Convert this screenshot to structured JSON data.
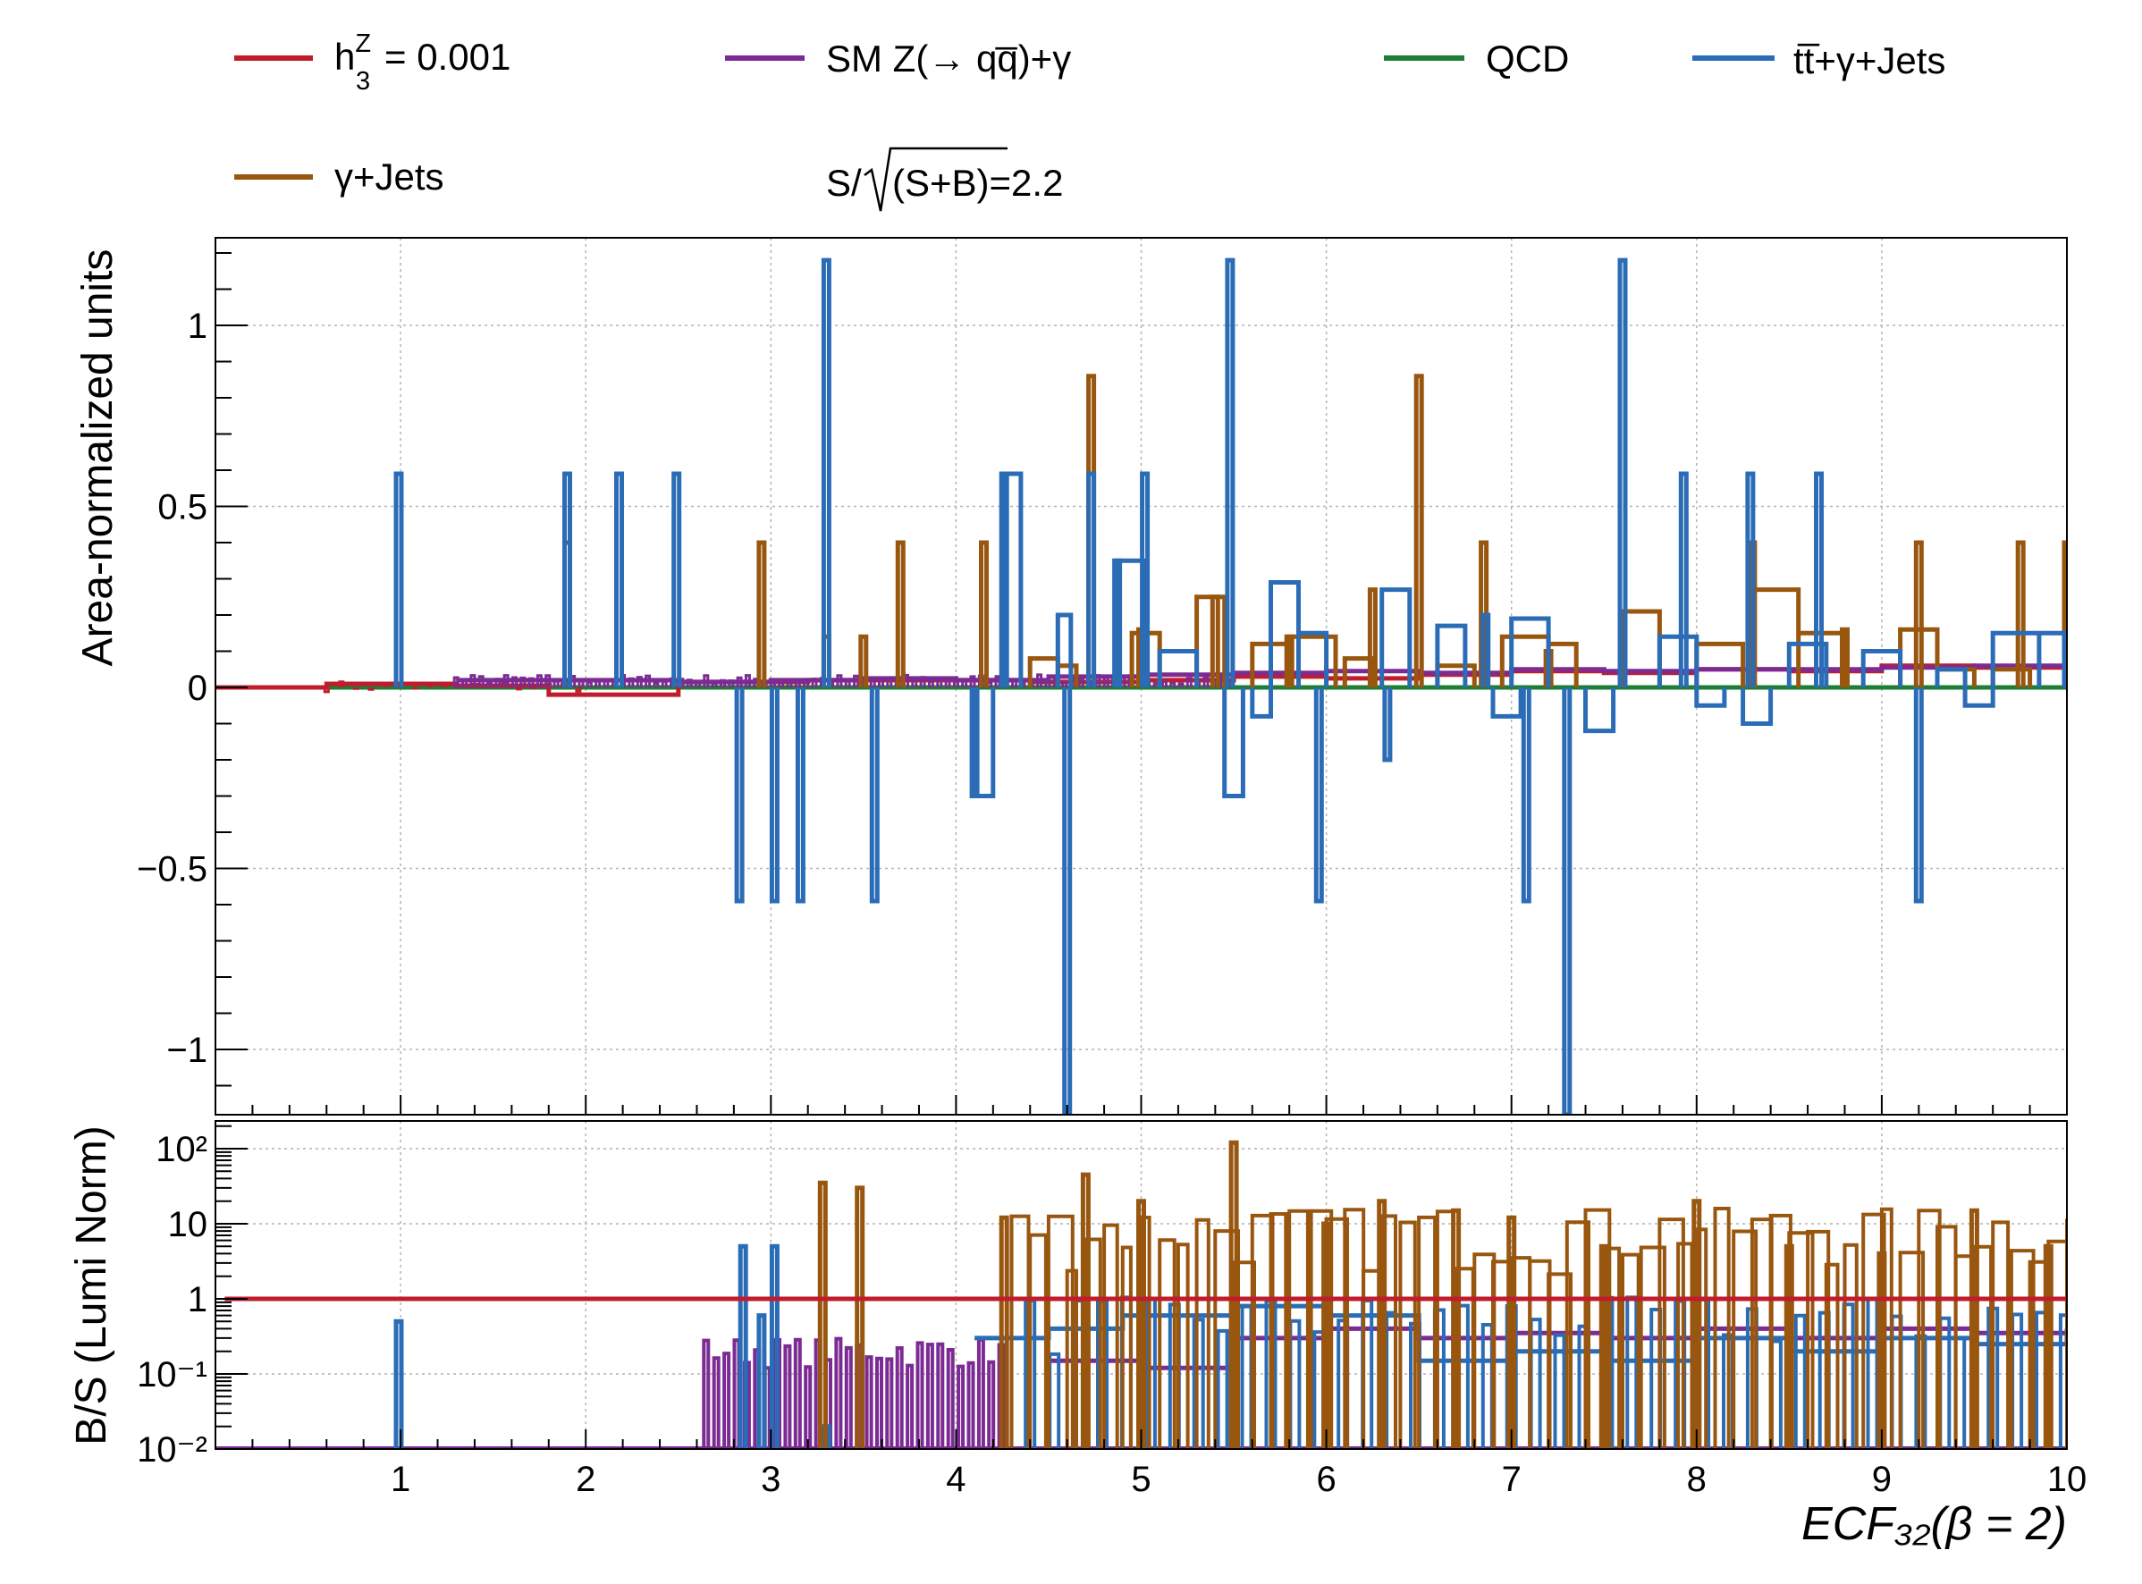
{
  "legend": {
    "items": [
      {
        "label": "h",
        "sup": "Z",
        "sub": "3",
        "suffix": "= 0.001",
        "color": "#c01c2c"
      },
      {
        "label": "SM Z(→ qq̅)+γ",
        "color": "#7b2b93"
      },
      {
        "label": "QCD",
        "color": "#1e7e34"
      },
      {
        "label": "tt̅+γ+Jets",
        "color": "#2a6cb6"
      },
      {
        "label": "γ+Jets",
        "color": "#98560f"
      }
    ],
    "significance": {
      "prefix": "S/",
      "radicand": "(S+B)=2.2"
    }
  },
  "chart_data": [
    {
      "type": "line",
      "ylabel": "Area-normalized units",
      "xlim": [
        0,
        10
      ],
      "ylim": [
        -1.18,
        1.24
      ],
      "grid": true,
      "xticks": [
        1,
        2,
        3,
        4,
        5,
        6,
        7,
        8,
        9,
        10
      ],
      "yticks": [
        -1,
        -0.5,
        0,
        0.5,
        1
      ],
      "ytick_labels": [
        "−1",
        "−0.5",
        "0",
        "0.5",
        "1"
      ],
      "spikes_x_approx": [
        0.99,
        1.9,
        2.18,
        2.49,
        2.83,
        3.02,
        3.16,
        3.3,
        3.56,
        4.1,
        4.26,
        4.36,
        4.47,
        4.6,
        4.73,
        4.87,
        5.02,
        5.48,
        5.96,
        6.33,
        6.86,
        7.08,
        7.6,
        7.93,
        8.29,
        8.66,
        9.2
      ],
      "series": [
        {
          "name": "h_3^Z = 0.001",
          "values_approx": [
            [
              0,
              0
            ],
            [
              0.6,
              0.01
            ],
            [
              1.3,
              0.005
            ],
            [
              1.8,
              -0.02
            ],
            [
              2.5,
              0.015
            ],
            [
              3.2,
              0.02
            ],
            [
              3.8,
              0.02
            ],
            [
              4.4,
              0.015
            ],
            [
              5.0,
              0.02
            ],
            [
              5.5,
              0.03
            ],
            [
              6.0,
              0.025
            ],
            [
              6.5,
              0.035
            ],
            [
              7.0,
              0.045
            ],
            [
              7.5,
              0.04
            ],
            [
              8.0,
              0.05
            ],
            [
              8.5,
              0.045
            ],
            [
              9.0,
              0.06
            ],
            [
              9.5,
              0.055
            ],
            [
              10.0,
              0.055
            ]
          ]
        },
        {
          "name": "SM Z(→ qq̅)+γ",
          "values_approx": [
            [
              1.3,
              0.02
            ],
            [
              2.0,
              0.02
            ],
            [
              2.5,
              0.015
            ],
            [
              3.0,
              0.02
            ],
            [
              3.5,
              0.025
            ],
            [
              4.0,
              0.02
            ],
            [
              4.5,
              0.03
            ],
            [
              5.0,
              0.035
            ],
            [
              5.5,
              0.04
            ],
            [
              6.0,
              0.045
            ],
            [
              6.5,
              0.04
            ],
            [
              7.0,
              0.05
            ],
            [
              7.5,
              0.045
            ],
            [
              8.0,
              0.05
            ],
            [
              8.5,
              0.05
            ],
            [
              9.0,
              0.055
            ],
            [
              9.5,
              0.06
            ],
            [
              10.0,
              0.05
            ]
          ]
        },
        {
          "name": "QCD",
          "values_approx": [
            [
              0,
              0
            ],
            [
              10,
              0
            ]
          ]
        },
        {
          "name": "tt̅+γ+Jets",
          "values_approx": [
            [
              0.99,
              0.59
            ],
            [
              1.9,
              0.59
            ],
            [
              2.18,
              0.59
            ],
            [
              2.49,
              0.59
            ],
            [
              2.83,
              -0.59
            ],
            [
              3.02,
              -0.59
            ],
            [
              3.16,
              -0.59
            ],
            [
              3.3,
              1.18
            ],
            [
              3.56,
              -0.59
            ],
            [
              4.1,
              -0.3
            ],
            [
              4.26,
              0.59
            ],
            [
              4.6,
              -1.18
            ],
            [
              4.73,
              0.59
            ],
            [
              4.87,
              0.35
            ],
            [
              5.02,
              0.59
            ],
            [
              5.48,
              1.18
            ],
            [
              5.96,
              -0.59
            ],
            [
              6.33,
              -0.2
            ],
            [
              6.86,
              0.2
            ],
            [
              7.08,
              -0.59
            ],
            [
              7.3,
              -1.18
            ],
            [
              7.6,
              1.18
            ],
            [
              7.93,
              0.59
            ],
            [
              8.29,
              0.59
            ],
            [
              8.66,
              0.59
            ],
            [
              9.2,
              -0.59
            ],
            [
              10.0,
              0.15
            ]
          ]
        },
        {
          "name": "γ+Jets",
          "values_approx": [
            [
              1.9,
              0.4
            ],
            [
              2.95,
              0.4
            ],
            [
              3.3,
              0.14
            ],
            [
              3.5,
              0.14
            ],
            [
              3.7,
              0.4
            ],
            [
              4.15,
              0.4
            ],
            [
              4.73,
              0.86
            ],
            [
              5.0,
              0.16
            ],
            [
              5.4,
              0.25
            ],
            [
              5.8,
              0.14
            ],
            [
              6.25,
              0.27
            ],
            [
              6.5,
              0.86
            ],
            [
              6.85,
              0.4
            ],
            [
              7.2,
              0.1
            ],
            [
              7.6,
              0.2
            ],
            [
              8.3,
              0.4
            ],
            [
              8.8,
              0.16
            ],
            [
              9.2,
              0.4
            ],
            [
              9.75,
              0.4
            ],
            [
              10.0,
              0.4
            ]
          ]
        }
      ]
    },
    {
      "type": "line",
      "ylabel": "B/S (Lumi Norm)",
      "xlabel": "ECF₃₂(β = 2)",
      "xlim": [
        0,
        10
      ],
      "ylim": [
        0.01,
        250
      ],
      "yscale": "log",
      "grid": true,
      "xticks": [
        1,
        2,
        3,
        4,
        5,
        6,
        7,
        8,
        9,
        10
      ],
      "ytick_labels": [
        "10⁻²",
        "10⁻¹",
        "1",
        "10",
        "10²"
      ],
      "ytick_values": [
        0.01,
        0.1,
        1,
        10,
        100
      ],
      "series": [
        {
          "name": "h_3^Z = 0.001",
          "values_approx": [
            [
              0,
              1
            ],
            [
              10,
              1
            ]
          ]
        },
        {
          "name": "SM Z(→ qq̅)+γ",
          "values_approx": [
            [
              2.65,
              0.2
            ],
            [
              3.6,
              0.2
            ],
            [
              4.0,
              0.22
            ],
            [
              4.5,
              0.15
            ],
            [
              5.0,
              0.12
            ],
            [
              5.5,
              0.3
            ],
            [
              6.0,
              0.4
            ],
            [
              6.5,
              0.3
            ],
            [
              7.0,
              0.35
            ],
            [
              7.5,
              0.3
            ],
            [
              8.0,
              0.4
            ],
            [
              8.5,
              0.3
            ],
            [
              9.0,
              0.4
            ],
            [
              9.5,
              0.35
            ],
            [
              10.0,
              0.4
            ]
          ]
        },
        {
          "name": "QCD",
          "values_approx": [
            [
              0,
              0.01
            ],
            [
              10,
              0.01
            ]
          ]
        },
        {
          "name": "tt̅+γ+Jets",
          "values_approx": [
            [
              0.99,
              0.5
            ],
            [
              2.85,
              5
            ],
            [
              3.02,
              5
            ],
            [
              4.1,
              0.3
            ],
            [
              4.5,
              0.4
            ],
            [
              4.9,
              0.6
            ],
            [
              5.5,
              0.8
            ],
            [
              6.0,
              0.6
            ],
            [
              6.5,
              0.15
            ],
            [
              7.0,
              0.2
            ],
            [
              7.5,
              0.15
            ],
            [
              8.0,
              0.3
            ],
            [
              8.5,
              0.2
            ],
            [
              9.0,
              0.3
            ],
            [
              9.5,
              0.25
            ],
            [
              10.0,
              0.4
            ]
          ]
        },
        {
          "name": "γ+Jets",
          "values_approx": [
            [
              3.28,
              35
            ],
            [
              3.48,
              30
            ],
            [
              4.26,
              12
            ],
            [
              4.7,
              45
            ],
            [
              5.0,
              20
            ],
            [
              5.5,
              120
            ],
            [
              6.0,
              10
            ],
            [
              6.3,
              20
            ],
            [
              6.7,
              15
            ],
            [
              7.0,
              12
            ],
            [
              7.5,
              5
            ],
            [
              8.0,
              20
            ],
            [
              8.5,
              5
            ],
            [
              9.0,
              4
            ],
            [
              9.5,
              15
            ],
            [
              9.9,
              5
            ]
          ]
        }
      ]
    }
  ]
}
